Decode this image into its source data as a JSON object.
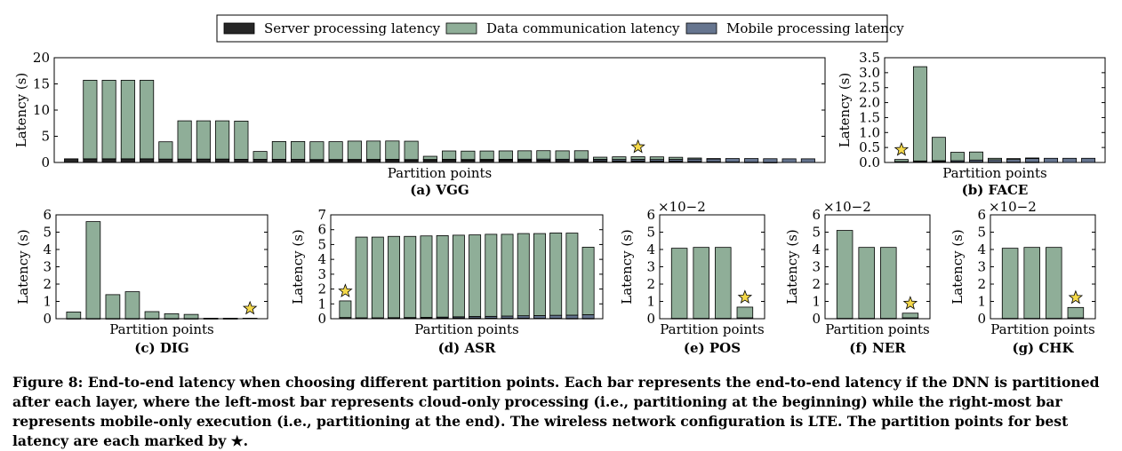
{
  "legend": {
    "items": [
      {
        "label": "Server processing latency",
        "color": "#262626"
      },
      {
        "label": "Data communication latency",
        "color": "#8fae98"
      },
      {
        "label": "Mobile processing latency",
        "color": "#66758f"
      }
    ]
  },
  "caption": {
    "prefix": "Figure 8:",
    "text": "End-to-end latency when choosing different partition points. Each bar represents the end-to-end latency if the DNN is partitioned after each layer, where the left-most bar represents cloud-only processing (i.e., partitioning at the beginning) while the right-most bar represents mobile-only execution (i.e., partitioning at the end). The wireless network configuration is LTE. The partition points for best latency are each marked by ★."
  },
  "chart_data": [
    {
      "id": "vgg",
      "type": "bar",
      "stacked": true,
      "title": "(a) VGG",
      "xlabel": "Partition points",
      "ylabel": "Latency (s)",
      "ylim": [
        0,
        20
      ],
      "yticks": [
        0,
        5,
        10,
        15,
        20
      ],
      "exponent": "",
      "best_index": 30,
      "series": [
        {
          "name": "Server processing latency",
          "values": [
            0.7,
            0.7,
            0.7,
            0.7,
            0.7,
            0.65,
            0.65,
            0.65,
            0.65,
            0.6,
            0.6,
            0.6,
            0.6,
            0.55,
            0.55,
            0.55,
            0.55,
            0.55,
            0.5,
            0.5,
            0.5,
            0.45,
            0.45,
            0.45,
            0.45,
            0.45,
            0.4,
            0.4,
            0.35,
            0.3,
            0.3,
            0.25,
            0.25,
            0.2,
            0.15,
            0.1,
            0.05,
            0.02,
            0,
            0
          ]
        },
        {
          "name": "Data communication latency",
          "values": [
            0,
            15,
            15,
            15,
            15,
            3.3,
            7.3,
            7.3,
            7.3,
            7.3,
            1.5,
            3.4,
            3.4,
            3.4,
            3.4,
            3.5,
            3.5,
            3.5,
            3.5,
            0.6,
            1.6,
            1.6,
            1.6,
            1.6,
            1.6,
            1.6,
            1.6,
            1.6,
            0.4,
            0.5,
            0.5,
            0.5,
            0.4,
            0.2,
            0.05,
            0,
            0,
            0,
            0,
            0
          ]
        },
        {
          "name": "Mobile processing latency",
          "values": [
            0,
            0,
            0,
            0,
            0,
            0,
            0,
            0,
            0,
            0,
            0,
            0,
            0,
            0.01,
            0.02,
            0.03,
            0.04,
            0.05,
            0.06,
            0.08,
            0.1,
            0.12,
            0.14,
            0.16,
            0.18,
            0.2,
            0.22,
            0.24,
            0.26,
            0.28,
            0.3,
            0.32,
            0.34,
            0.45,
            0.55,
            0.65,
            0.7,
            0.7,
            0.7,
            0.7
          ]
        }
      ]
    },
    {
      "id": "face",
      "type": "bar",
      "stacked": true,
      "title": "(b) FACE",
      "xlabel": "Partition points",
      "ylabel": "Latency (s)",
      "ylim": [
        0,
        3.5
      ],
      "yticks": [
        0,
        0.5,
        1.0,
        1.5,
        2.0,
        2.5,
        3.0,
        3.5
      ],
      "ytick_labels": [
        "0.0",
        "0.5",
        "1.0",
        "1.5",
        "2.0",
        "2.5",
        "3.0",
        "3.5"
      ],
      "exponent": "",
      "best_index": 0,
      "series": [
        {
          "name": "Server processing latency",
          "values": [
            0.03,
            0.03,
            0.03,
            0.02,
            0.02,
            0.01,
            0.01,
            0.01,
            0,
            0,
            0
          ]
        },
        {
          "name": "Data communication latency",
          "values": [
            0.07,
            3.15,
            0.78,
            0.28,
            0.27,
            0.05,
            0.03,
            0.02,
            0,
            0,
            0
          ]
        },
        {
          "name": "Mobile processing latency",
          "values": [
            0,
            0.02,
            0.03,
            0.04,
            0.06,
            0.08,
            0.09,
            0.12,
            0.14,
            0.14,
            0.14
          ]
        }
      ]
    },
    {
      "id": "dig",
      "type": "bar",
      "stacked": true,
      "title": "(c) DIG",
      "xlabel": "Partition points",
      "ylabel": "Latency (s)",
      "ylim": [
        0,
        6
      ],
      "yticks": [
        0,
        1,
        2,
        3,
        4,
        5,
        6
      ],
      "exponent": "",
      "best_index": 9,
      "series": [
        {
          "name": "Server processing latency",
          "values": [
            0.01,
            0.01,
            0.01,
            0.01,
            0.01,
            0.01,
            0.01,
            0.01,
            0.01,
            0
          ]
        },
        {
          "name": "Data communication latency",
          "values": [
            0.38,
            5.6,
            1.38,
            1.55,
            0.4,
            0.28,
            0.24,
            0.02,
            0.02,
            0
          ]
        },
        {
          "name": "Mobile processing latency",
          "values": [
            0,
            0,
            0,
            0,
            0,
            0,
            0,
            0,
            0,
            0.03
          ]
        }
      ]
    },
    {
      "id": "asr",
      "type": "bar",
      "stacked": true,
      "title": "(d) ASR",
      "xlabel": "Partition points",
      "ylabel": "Latency (s)",
      "ylim": [
        0,
        7
      ],
      "yticks": [
        0,
        1,
        2,
        3,
        4,
        5,
        6,
        7
      ],
      "exponent": "",
      "best_index": 0,
      "series": [
        {
          "name": "Server processing latency",
          "values": [
            0.08,
            0.06,
            0.06,
            0.06,
            0.06,
            0.05,
            0.05,
            0.05,
            0.05,
            0.04,
            0.04,
            0.04,
            0.03,
            0.03,
            0.02,
            0.02
          ]
        },
        {
          "name": "Data communication latency",
          "values": [
            1.12,
            5.44,
            5.44,
            5.48,
            5.47,
            5.49,
            5.49,
            5.5,
            5.5,
            5.53,
            5.51,
            5.54,
            5.53,
            5.55,
            5.53,
            4.55
          ]
        },
        {
          "name": "Mobile processing latency",
          "values": [
            0,
            0,
            0,
            0.01,
            0.02,
            0.04,
            0.06,
            0.08,
            0.1,
            0.12,
            0.14,
            0.16,
            0.18,
            0.2,
            0.22,
            0.25
          ]
        }
      ]
    },
    {
      "id": "pos",
      "type": "bar",
      "stacked": true,
      "title": "(e) POS",
      "xlabel": "Partition points",
      "ylabel": "Latency (s)",
      "ylim": [
        0,
        6
      ],
      "yticks": [
        0,
        1,
        2,
        3,
        4,
        5,
        6
      ],
      "exponent": "×10−2",
      "best_index": 3,
      "series": [
        {
          "name": "Server processing latency",
          "values": [
            0.02,
            0.02,
            0.02,
            0
          ]
        },
        {
          "name": "Data communication latency",
          "values": [
            4.05,
            4.1,
            4.1,
            0.62
          ]
        },
        {
          "name": "Mobile processing latency",
          "values": [
            0,
            0,
            0,
            0.05
          ]
        }
      ]
    },
    {
      "id": "ner",
      "type": "bar",
      "stacked": true,
      "title": "(f) NER",
      "xlabel": "Partition points",
      "ylabel": "Latency (s)",
      "ylim": [
        0,
        6
      ],
      "yticks": [
        0,
        1,
        2,
        3,
        4,
        5,
        6
      ],
      "exponent": "×10−2",
      "best_index": 3,
      "series": [
        {
          "name": "Server processing latency",
          "values": [
            0.02,
            0.02,
            0.02,
            0
          ]
        },
        {
          "name": "Data communication latency",
          "values": [
            5.08,
            4.1,
            4.1,
            0.27
          ]
        },
        {
          "name": "Mobile processing latency",
          "values": [
            0,
            0,
            0,
            0.05
          ]
        }
      ]
    },
    {
      "id": "chk",
      "type": "bar",
      "stacked": true,
      "title": "(g) CHK",
      "xlabel": "Partition points",
      "ylabel": "Latency (s)",
      "ylim": [
        0,
        6
      ],
      "yticks": [
        0,
        1,
        2,
        3,
        4,
        5,
        6
      ],
      "exponent": "×10−2",
      "best_index": 3,
      "series": [
        {
          "name": "Server processing latency",
          "values": [
            0.02,
            0.02,
            0.02,
            0
          ]
        },
        {
          "name": "Data communication latency",
          "values": [
            4.05,
            4.1,
            4.1,
            0.6
          ]
        },
        {
          "name": "Mobile processing latency",
          "values": [
            0,
            0,
            0,
            0.05
          ]
        }
      ]
    }
  ]
}
